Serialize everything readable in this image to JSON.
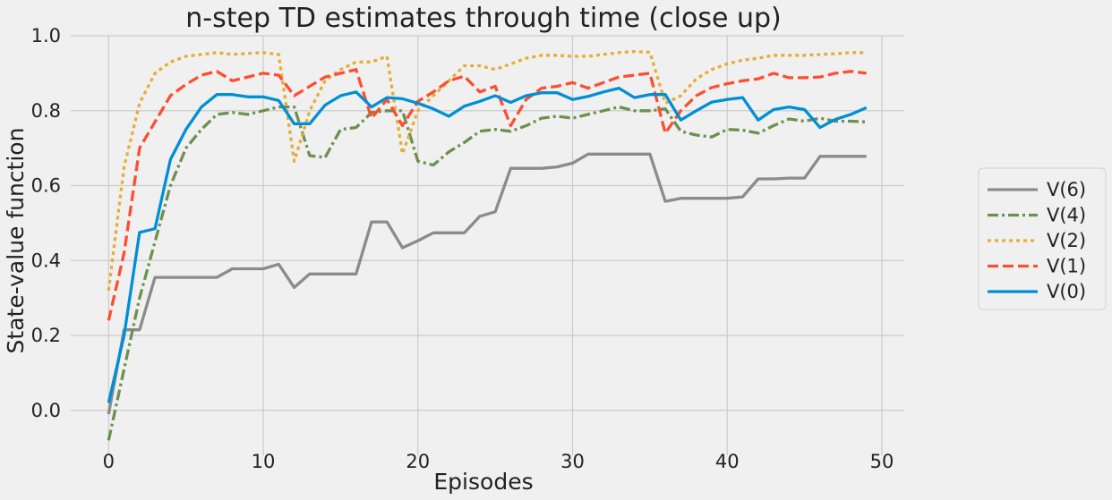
{
  "chart_data": {
    "type": "line",
    "title": "n-step TD estimates through time (close up)",
    "xlabel": "Episodes",
    "ylabel": "State-value function",
    "xlim": [
      -2.45,
      51.45
    ],
    "ylim": [
      -0.12,
      1.0
    ],
    "xticks": [
      0,
      10,
      20,
      30,
      40,
      50
    ],
    "yticks": [
      0.0,
      0.2,
      0.4,
      0.6,
      0.8,
      1.0
    ],
    "grid": true,
    "legend_position": "right",
    "x": [
      0,
      1,
      2,
      3,
      4,
      5,
      6,
      7,
      8,
      9,
      10,
      11,
      12,
      13,
      14,
      15,
      16,
      17,
      18,
      19,
      20,
      21,
      22,
      23,
      24,
      25,
      26,
      27,
      28,
      29,
      30,
      31,
      32,
      33,
      34,
      35,
      36,
      37,
      38,
      39,
      40,
      41,
      42,
      43,
      44,
      45,
      46,
      47,
      48,
      49
    ],
    "series": [
      {
        "name": "V(6)",
        "color": "#8b8b8b",
        "dash": "solid",
        "values": [
          -0.01,
          0.215,
          0.215,
          0.355,
          0.355,
          0.355,
          0.355,
          0.355,
          0.378,
          0.378,
          0.378,
          0.39,
          0.328,
          0.364,
          0.364,
          0.364,
          0.364,
          0.503,
          0.503,
          0.434,
          0.453,
          0.474,
          0.474,
          0.474,
          0.518,
          0.53,
          0.646,
          0.646,
          0.646,
          0.65,
          0.66,
          0.684,
          0.684,
          0.684,
          0.684,
          0.684,
          0.558,
          0.566,
          0.566,
          0.566,
          0.566,
          0.57,
          0.618,
          0.618,
          0.62,
          0.62,
          0.678,
          0.678,
          0.678,
          0.678
        ]
      },
      {
        "name": "V(4)",
        "color": "#6d904f",
        "dash": "dashdot",
        "values": [
          -0.08,
          0.11,
          0.3,
          0.45,
          0.6,
          0.7,
          0.75,
          0.79,
          0.795,
          0.79,
          0.8,
          0.81,
          0.81,
          0.68,
          0.675,
          0.75,
          0.755,
          0.795,
          0.8,
          0.8,
          0.665,
          0.655,
          0.69,
          0.715,
          0.745,
          0.75,
          0.745,
          0.76,
          0.78,
          0.785,
          0.78,
          0.79,
          0.8,
          0.81,
          0.8,
          0.8,
          0.805,
          0.745,
          0.735,
          0.73,
          0.75,
          0.748,
          0.74,
          0.76,
          0.778,
          0.772,
          0.78,
          0.772,
          0.772,
          0.77
        ]
      },
      {
        "name": "V(2)",
        "color": "#e5ae38",
        "dash": "dotted",
        "values": [
          0.32,
          0.65,
          0.82,
          0.9,
          0.93,
          0.945,
          0.95,
          0.955,
          0.95,
          0.953,
          0.955,
          0.95,
          0.665,
          0.8,
          0.88,
          0.91,
          0.93,
          0.93,
          0.945,
          0.685,
          0.8,
          0.84,
          0.88,
          0.92,
          0.92,
          0.91,
          0.925,
          0.94,
          0.948,
          0.948,
          0.945,
          0.945,
          0.95,
          0.955,
          0.958,
          0.956,
          0.82,
          0.84,
          0.885,
          0.91,
          0.925,
          0.935,
          0.94,
          0.948,
          0.948,
          0.948,
          0.95,
          0.952,
          0.955,
          0.955
        ]
      },
      {
        "name": "V(1)",
        "color": "#fc4f30",
        "dash": "dashed",
        "values": [
          0.24,
          0.42,
          0.7,
          0.77,
          0.84,
          0.87,
          0.895,
          0.905,
          0.88,
          0.89,
          0.9,
          0.895,
          0.84,
          0.865,
          0.89,
          0.9,
          0.91,
          0.78,
          0.83,
          0.76,
          0.825,
          0.85,
          0.88,
          0.892,
          0.85,
          0.865,
          0.76,
          0.83,
          0.86,
          0.865,
          0.875,
          0.86,
          0.875,
          0.89,
          0.895,
          0.9,
          0.74,
          0.8,
          0.84,
          0.862,
          0.872,
          0.88,
          0.885,
          0.9,
          0.888,
          0.888,
          0.89,
          0.9,
          0.905,
          0.9
        ]
      },
      {
        "name": "V(0)",
        "color": "#008fd5",
        "dash": "solid",
        "values": [
          0.02,
          0.2,
          0.475,
          0.485,
          0.67,
          0.75,
          0.81,
          0.843,
          0.843,
          0.837,
          0.837,
          0.827,
          0.765,
          0.765,
          0.815,
          0.84,
          0.85,
          0.81,
          0.835,
          0.832,
          0.82,
          0.805,
          0.785,
          0.812,
          0.825,
          0.84,
          0.822,
          0.84,
          0.848,
          0.848,
          0.83,
          0.838,
          0.85,
          0.86,
          0.835,
          0.843,
          0.843,
          0.775,
          0.8,
          0.823,
          0.83,
          0.835,
          0.775,
          0.803,
          0.81,
          0.803,
          0.755,
          0.777,
          0.79,
          0.808
        ]
      }
    ],
    "legend_order": [
      "V(6)",
      "V(4)",
      "V(2)",
      "V(1)",
      "V(0)"
    ]
  }
}
